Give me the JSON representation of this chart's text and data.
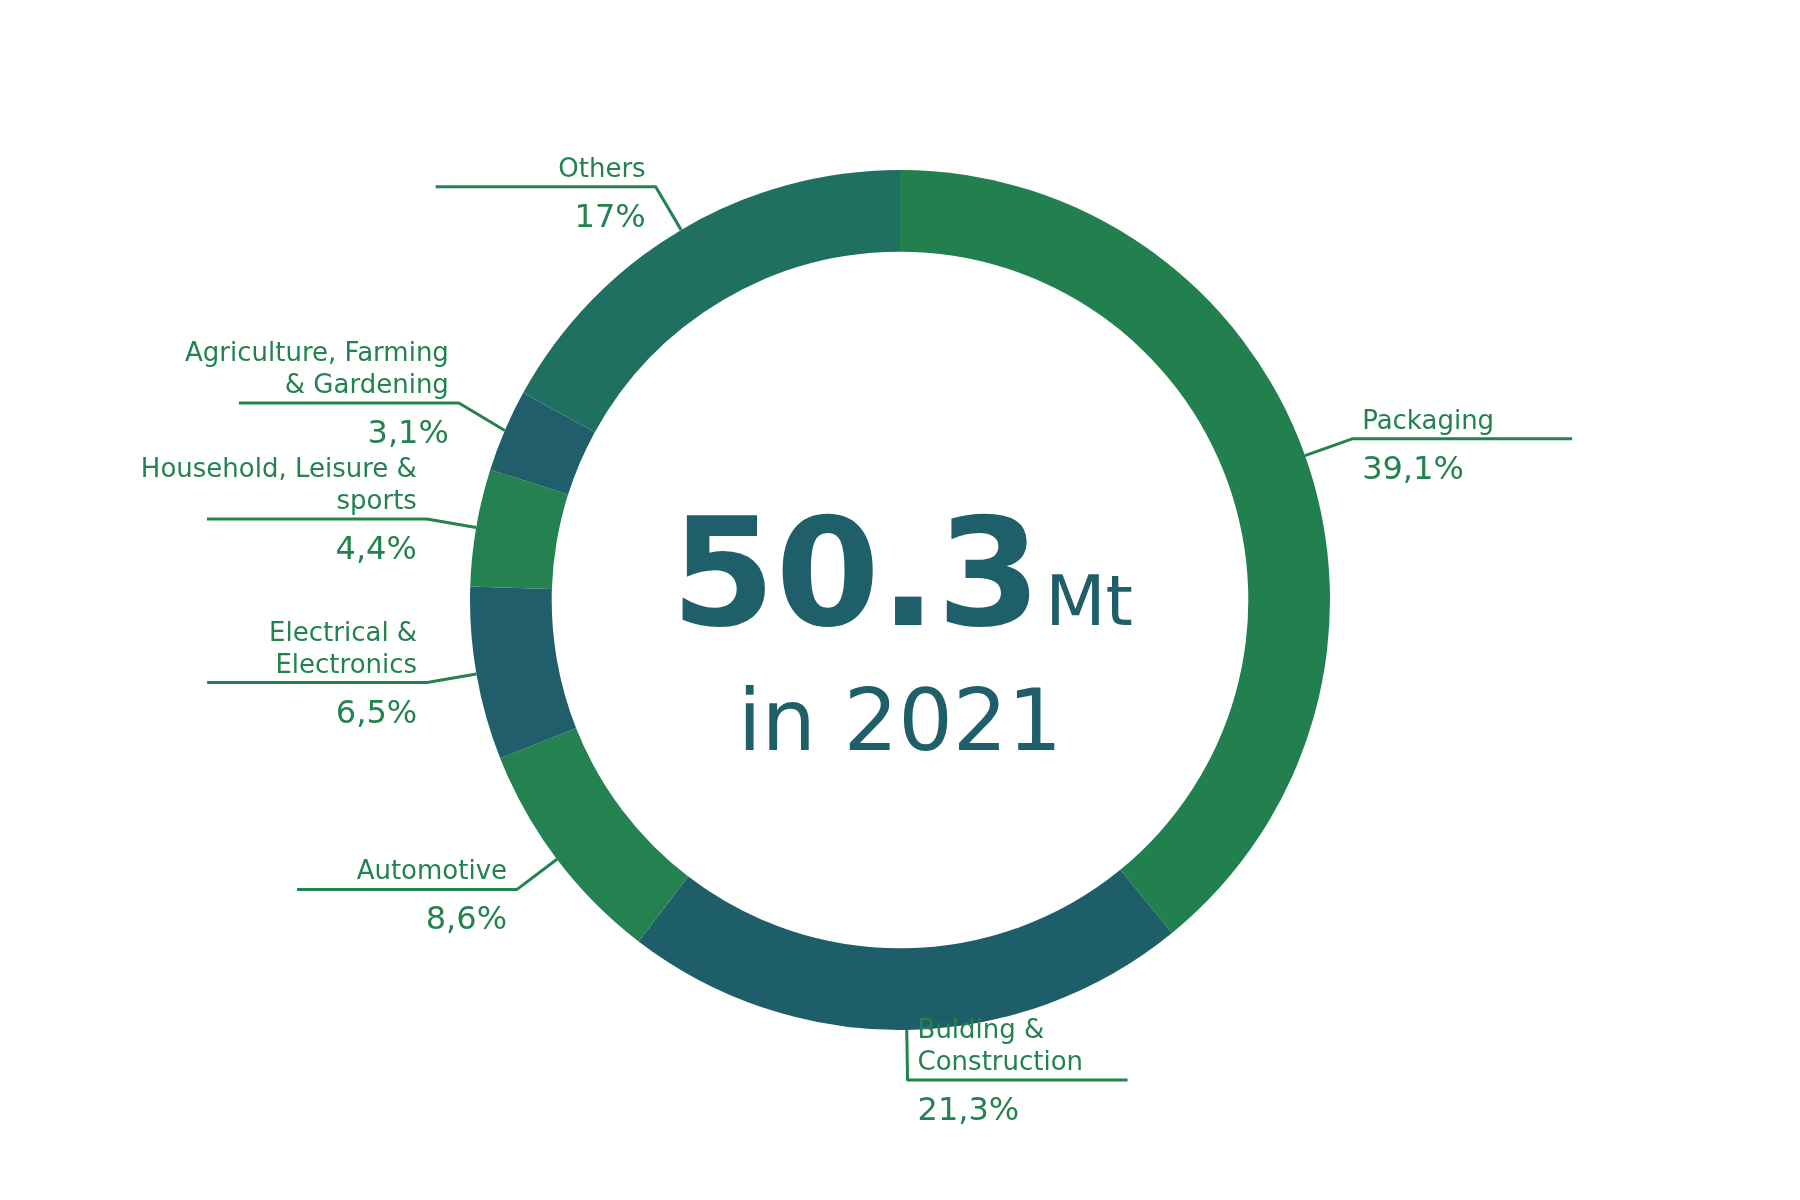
{
  "chart_data": {
    "type": "donut",
    "categories": [
      "Packaging",
      "Bulding & Construction",
      "Automotive",
      "Electrical & Electronics",
      "Household, Leisure & sports",
      "Agriculture, Farming & Gardening",
      "Others"
    ],
    "values": [
      39.1,
      21.3,
      8.6,
      6.5,
      4.4,
      3.1,
      17
    ],
    "value_labels": [
      "39,1%",
      "21,3%",
      "8,6%",
      "6,5%",
      "4,4%",
      "3,1%",
      "17%"
    ],
    "colors": [
      "#22804f",
      "#1d5e68",
      "#23824f",
      "#215e6b",
      "#23824f",
      "#215e6b",
      "#1f7060"
    ],
    "annotations": [
      "50.3Mt",
      "in 2021"
    ],
    "legend": false
  }
}
